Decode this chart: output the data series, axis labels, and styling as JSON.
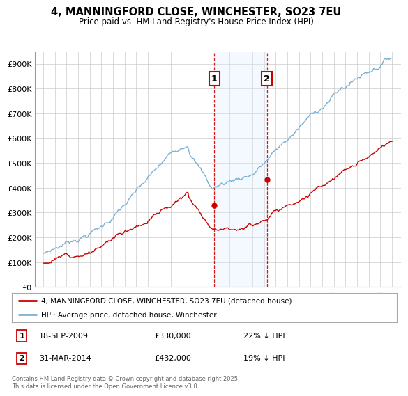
{
  "title": "4, MANNINGFORD CLOSE, WINCHESTER, SO23 7EU",
  "subtitle": "Price paid vs. HM Land Registry's House Price Index (HPI)",
  "ylim": [
    0,
    950000
  ],
  "yticks": [
    0,
    100000,
    200000,
    300000,
    400000,
    500000,
    600000,
    700000,
    800000,
    900000
  ],
  "ytick_labels": [
    "£0",
    "£100K",
    "£200K",
    "£300K",
    "£400K",
    "£500K",
    "£600K",
    "£700K",
    "£800K",
    "£900K"
  ],
  "hpi_color": "#7ab0d4",
  "price_color": "#cc0000",
  "transaction1_date": 2009.72,
  "transaction1_price": 330000,
  "transaction2_date": 2014.25,
  "transaction2_price": 432000,
  "legend_line1": "4, MANNINGFORD CLOSE, WINCHESTER, SO23 7EU (detached house)",
  "legend_line2": "HPI: Average price, detached house, Winchester",
  "annotation1_date": "18-SEP-2009",
  "annotation1_price": "£330,000",
  "annotation1_pct": "22% ↓ HPI",
  "annotation2_date": "31-MAR-2014",
  "annotation2_price": "£432,000",
  "annotation2_pct": "19% ↓ HPI",
  "footnote": "Contains HM Land Registry data © Crown copyright and database right 2025.\nThis data is licensed under the Open Government Licence v3.0.",
  "bg_color": "#ffffff",
  "shaded_region_color": "#ddeeff",
  "grid_color": "#cccccc"
}
